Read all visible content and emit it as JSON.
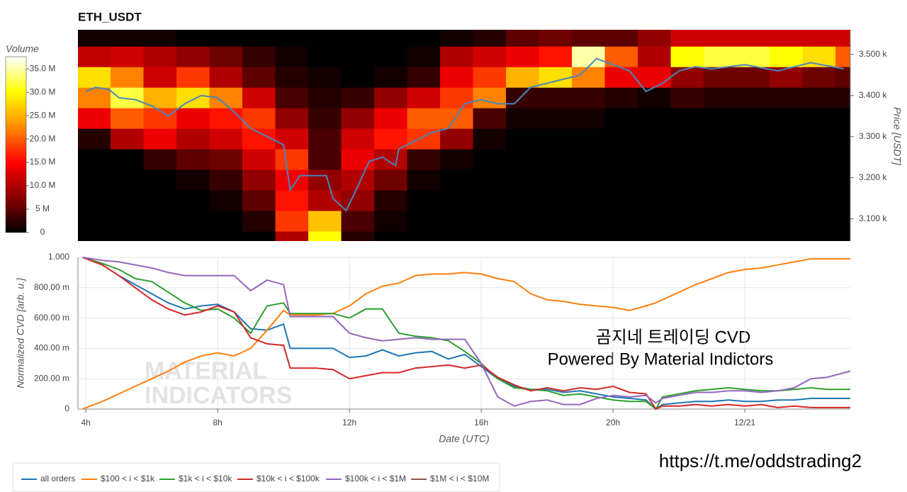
{
  "chart_data": [
    {
      "type": "heatmap",
      "title": "ETH_USDT",
      "y_label": "Price [USDT]",
      "colorbar_label": "Volume",
      "x_bins": [
        3.75,
        4.75,
        5.75,
        6.75,
        7.75,
        8.75,
        9.75,
        10.75,
        11.75,
        12.75,
        13.75,
        14.75,
        15.75,
        16.75,
        17.75,
        18.75,
        19.75,
        20.75,
        21.75,
        22.75,
        23.75,
        24.75,
        25.75,
        26.75,
        27.75
      ],
      "y_bins": [
        3020,
        3070,
        3120,
        3170,
        3220,
        3270,
        3320,
        3370,
        3420,
        3470,
        3520,
        3570
      ],
      "z": [
        [
          0,
          0,
          0,
          0,
          0,
          0,
          10,
          30,
          2,
          0,
          0,
          0,
          0,
          0,
          0,
          0,
          0,
          0,
          0,
          0,
          0,
          0,
          0,
          0
        ],
        [
          0,
          0,
          0,
          0,
          0,
          2,
          18,
          26,
          4,
          1,
          0,
          0,
          0,
          0,
          0,
          0,
          0,
          0,
          0,
          0,
          0,
          0,
          0,
          0
        ],
        [
          0,
          0,
          0,
          0,
          1,
          5,
          16,
          10,
          8,
          2,
          0,
          0,
          0,
          0,
          0,
          0,
          0,
          0,
          0,
          0,
          0,
          0,
          0,
          0
        ],
        [
          0,
          0,
          0,
          1,
          3,
          8,
          14,
          8,
          10,
          6,
          1,
          0,
          0,
          0,
          0,
          0,
          0,
          0,
          0,
          0,
          0,
          0,
          0,
          0
        ],
        [
          0,
          0,
          3,
          5,
          6,
          12,
          18,
          4,
          14,
          10,
          3,
          1,
          0,
          0,
          0,
          0,
          0,
          0,
          0,
          0,
          0,
          0,
          0,
          0
        ],
        [
          2,
          10,
          14,
          10,
          12,
          16,
          12,
          4,
          12,
          16,
          18,
          8,
          1,
          0,
          0,
          0,
          0,
          0,
          0,
          0,
          0,
          0,
          0,
          0
        ],
        [
          14,
          20,
          18,
          14,
          16,
          18,
          8,
          3,
          8,
          14,
          20,
          20,
          4,
          1,
          1,
          1,
          0,
          0,
          0,
          0,
          0,
          0,
          0,
          0
        ],
        [
          22,
          32,
          25,
          28,
          22,
          12,
          4,
          2,
          3,
          8,
          12,
          18,
          22,
          3,
          3,
          3,
          2,
          1,
          3,
          2,
          2,
          2,
          2,
          2
        ],
        [
          28,
          22,
          12,
          18,
          10,
          5,
          2,
          1,
          0,
          1,
          3,
          14,
          18,
          25,
          28,
          22,
          14,
          14,
          8,
          6,
          6,
          8,
          6,
          5
        ],
        [
          11,
          12,
          10,
          8,
          6,
          3,
          1,
          0,
          0,
          0,
          1,
          10,
          12,
          14,
          16,
          35,
          20,
          10,
          30,
          32,
          32,
          30,
          28,
          20
        ],
        [
          1,
          1,
          1,
          0,
          0,
          0,
          0,
          0,
          0,
          0,
          0,
          1,
          2,
          5,
          6,
          5,
          5,
          8,
          12,
          12,
          12,
          12,
          12,
          12
        ]
      ],
      "xlim": [
        3.76,
        27.2
      ],
      "ylim": [
        3046,
        3560
      ],
      "yticks": [
        {
          "value": 3100,
          "label": "3.100 k"
        },
        {
          "value": 3200,
          "label": "3.200 k"
        },
        {
          "value": 3300,
          "label": "3.300 k"
        },
        {
          "value": 3400,
          "label": "3.400 k"
        },
        {
          "value": 3500,
          "label": "3.500 k"
        }
      ],
      "clim": [
        0,
        37.6
      ],
      "cticks": [
        0,
        {
          "value": 5,
          "label": "5 M"
        },
        {
          "value": 10,
          "label": "10.0 M"
        },
        {
          "value": 15,
          "label": "15.0 M"
        },
        {
          "value": 20,
          "label": "20.0 M"
        },
        {
          "value": 25,
          "label": "25.0 M"
        },
        {
          "value": 30,
          "label": "30.0 M"
        },
        {
          "value": 35,
          "label": "35.0 M"
        }
      ],
      "colormap": [
        "#000000",
        "#8b0000",
        "#ff0000",
        "#ff8c00",
        "#ffff00",
        "#ffffff"
      ],
      "price_line": {
        "color": "#4a86b8",
        "x": [
          4,
          4.3,
          4.7,
          5,
          5.5,
          6,
          6.5,
          7,
          7.5,
          8,
          8.5,
          9,
          9.5,
          10,
          10.2,
          10.5,
          11,
          11.3,
          11.5,
          11.9,
          12.2,
          12.6,
          13,
          13.4,
          13.5,
          14,
          14.5,
          15,
          15.5,
          16,
          16.5,
          17,
          17.5,
          18,
          18.5,
          19,
          19.5,
          20,
          20.5,
          21,
          21.5,
          22,
          22.5,
          23,
          24,
          25,
          26,
          27
        ],
        "values": [
          3410,
          3420,
          3415,
          3395,
          3390,
          3375,
          3350,
          3380,
          3400,
          3395,
          3360,
          3320,
          3300,
          3280,
          3170,
          3205,
          3205,
          3205,
          3150,
          3120,
          3170,
          3240,
          3250,
          3230,
          3270,
          3290,
          3310,
          3320,
          3380,
          3390,
          3380,
          3380,
          3420,
          3430,
          3440,
          3450,
          3490,
          3475,
          3460,
          3410,
          3430,
          3460,
          3470,
          3465,
          3475,
          3460,
          3480,
          3465
        ]
      }
    },
    {
      "type": "line",
      "y_label": "Normalized CVD [arb. u.]",
      "x_label": "Date (UTC)",
      "annotations": [
        "곰지네 트레이딩 CVD",
        "Powered By Material Indictors"
      ],
      "watermark": [
        "MATERIAL",
        "INDICATORS"
      ],
      "x": [
        3.9,
        4.5,
        5,
        5.5,
        6,
        6.5,
        7,
        7.5,
        8,
        8.5,
        9,
        9.5,
        10,
        10.2,
        10.5,
        11,
        11.5,
        12,
        12.5,
        13,
        13.5,
        14,
        14.5,
        15,
        15.5,
        16,
        16.5,
        17,
        17.5,
        18,
        18.5,
        19,
        19.5,
        20,
        20.5,
        21,
        21.3,
        21.5,
        22,
        22.5,
        23,
        23.5,
        24,
        24.5,
        25,
        25.5,
        26,
        26.5,
        27.2
      ],
      "series": [
        {
          "name": "all orders",
          "color": "#1f77b4",
          "values": [
            1,
            0.95,
            0.88,
            0.82,
            0.76,
            0.7,
            0.66,
            0.68,
            0.69,
            0.64,
            0.53,
            0.52,
            0.56,
            0.4,
            0.4,
            0.4,
            0.4,
            0.34,
            0.35,
            0.39,
            0.35,
            0.37,
            0.38,
            0.33,
            0.36,
            0.28,
            0.2,
            0.15,
            0.13,
            0.13,
            0.11,
            0.12,
            0.1,
            0.08,
            0.07,
            0.06,
            0,
            0.03,
            0.04,
            0.05,
            0.05,
            0.06,
            0.05,
            0.05,
            0.06,
            0.06,
            0.07,
            0.07,
            0.07
          ]
        },
        {
          "name": "$100 < i < $1k",
          "color": "#ff7f0e",
          "values": [
            0,
            0.05,
            0.1,
            0.15,
            0.2,
            0.25,
            0.31,
            0.35,
            0.37,
            0.35,
            0.4,
            0.52,
            0.65,
            0.62,
            0.62,
            0.62,
            0.63,
            0.68,
            0.76,
            0.81,
            0.83,
            0.88,
            0.89,
            0.89,
            0.9,
            0.89,
            0.86,
            0.84,
            0.76,
            0.72,
            0.71,
            0.69,
            0.68,
            0.67,
            0.65,
            0.68,
            0.7,
            0.72,
            0.77,
            0.82,
            0.86,
            0.9,
            0.92,
            0.93,
            0.95,
            0.97,
            0.99,
            0.99,
            0.99
          ]
        },
        {
          "name": "$1k < i < $10k",
          "color": "#2ca02c",
          "values": [
            1,
            0.96,
            0.92,
            0.86,
            0.84,
            0.77,
            0.7,
            0.65,
            0.66,
            0.6,
            0.5,
            0.68,
            0.7,
            0.63,
            0.63,
            0.63,
            0.63,
            0.6,
            0.66,
            0.66,
            0.5,
            0.48,
            0.47,
            0.45,
            0.38,
            0.3,
            0.2,
            0.14,
            0.13,
            0.12,
            0.09,
            0.1,
            0.08,
            0.06,
            0.05,
            0.05,
            0,
            0.08,
            0.1,
            0.12,
            0.13,
            0.14,
            0.13,
            0.12,
            0.12,
            0.13,
            0.14,
            0.13,
            0.13
          ]
        },
        {
          "name": "$10k < i < $100k",
          "color": "#d62728",
          "values": [
            1,
            0.95,
            0.88,
            0.8,
            0.72,
            0.66,
            0.62,
            0.64,
            0.68,
            0.64,
            0.47,
            0.43,
            0.42,
            0.27,
            0.27,
            0.27,
            0.26,
            0.2,
            0.22,
            0.24,
            0.24,
            0.27,
            0.28,
            0.29,
            0.27,
            0.29,
            0.21,
            0.16,
            0.12,
            0.14,
            0.12,
            0.14,
            0.13,
            0.15,
            0.11,
            0.1,
            0,
            0.02,
            0.02,
            0.03,
            0.02,
            0.03,
            0.02,
            0.03,
            0.01,
            0.02,
            0.01,
            0.01,
            0.01
          ]
        },
        {
          "name": "$100k < i < $1M",
          "color": "#9467bd",
          "values": [
            1,
            0.98,
            0.97,
            0.95,
            0.93,
            0.9,
            0.88,
            0.88,
            0.88,
            0.88,
            0.78,
            0.85,
            0.82,
            0.61,
            0.61,
            0.61,
            0.61,
            0.5,
            0.47,
            0.45,
            0.46,
            0.47,
            0.46,
            0.46,
            0.46,
            0.3,
            0.08,
            0.02,
            0.05,
            0.06,
            0.03,
            0.03,
            0.07,
            0.09,
            0.08,
            0.09,
            0.04,
            0.07,
            0.09,
            0.11,
            0.11,
            0.12,
            0.12,
            0.11,
            0.12,
            0.14,
            0.2,
            0.21,
            0.25
          ]
        },
        {
          "name": "$1M < i < $10M",
          "color": "#8c564b",
          "values": [
            null,
            null,
            null,
            null,
            null,
            null,
            null,
            null,
            null,
            null,
            null,
            null,
            null,
            null,
            null,
            null,
            null,
            null,
            null,
            null,
            null,
            null,
            null,
            null,
            null,
            null,
            null,
            null,
            null,
            null,
            null,
            null,
            null,
            null,
            null,
            null,
            null,
            null,
            null,
            null,
            null,
            null,
            null,
            null,
            null,
            null,
            null,
            null,
            null
          ]
        }
      ],
      "xlim": [
        3.76,
        27.2
      ],
      "xticks": [
        {
          "value": 4,
          "label": "4h"
        },
        {
          "value": 8,
          "label": "8h"
        },
        {
          "value": 12,
          "label": "12h"
        },
        {
          "value": 16,
          "label": "16h"
        },
        {
          "value": 20,
          "label": "20h"
        },
        {
          "value": 24,
          "label": "12/21"
        }
      ],
      "ylim": [
        0,
        1
      ],
      "yticks": [
        0,
        {
          "value": 0.2,
          "label": "200.00 m"
        },
        {
          "value": 0.4,
          "label": "400.00 m"
        },
        {
          "value": 0.6,
          "label": "600.00 m"
        },
        {
          "value": 0.8,
          "label": "800.00 m"
        },
        {
          "value": 1,
          "label": "1.000"
        }
      ],
      "grid": true,
      "legend": "bottom-left"
    }
  ],
  "footer_link": "https://t.me/oddstrading2"
}
